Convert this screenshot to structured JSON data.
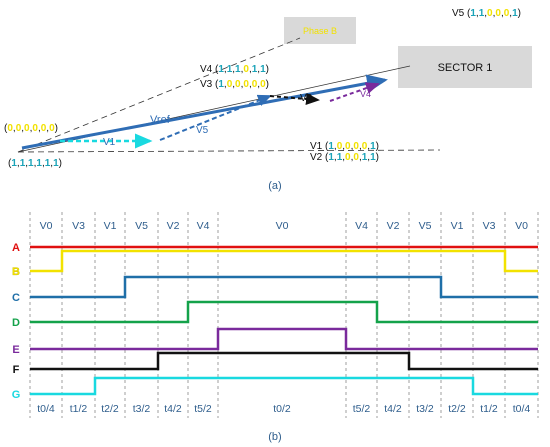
{
  "top": {
    "box_phase": "Phase B",
    "box_sector": "SECTOR 1",
    "caption": "(a)",
    "vref_label": "Vref",
    "v1_label": "V1",
    "v5_small_label": "V5",
    "v2_label": "V2",
    "v4_small_label": "V4",
    "vectors": {
      "v5": {
        "name": "V5",
        "bits": [
          "1",
          "1",
          "0",
          "0",
          "0",
          "1"
        ]
      },
      "v4": {
        "name": "V4",
        "bits": [
          "1",
          "1",
          "1",
          "0",
          "1",
          "1"
        ]
      },
      "v3": {
        "name": "V3",
        "bits": [
          "1",
          "0",
          "0",
          "0",
          "0",
          "0"
        ]
      },
      "v1": {
        "name": "V1",
        "bits": [
          "1",
          "0",
          "0",
          "0",
          "0",
          "1"
        ]
      },
      "v2": {
        "name": "V2",
        "bits": [
          "1",
          "1",
          "0",
          "0",
          "1",
          "1"
        ]
      },
      "origin0": {
        "bits": [
          "0",
          "0",
          "0",
          "0",
          "0",
          "0"
        ]
      },
      "origin1": {
        "bits": [
          "1",
          "1",
          "1",
          "1",
          "1",
          "1"
        ]
      }
    }
  },
  "bottom": {
    "caption": "(b)",
    "top_labels": [
      "V0",
      "V3",
      "V1",
      "V5",
      "V2",
      "V4",
      "V0",
      "V4",
      "V2",
      "V5",
      "V1",
      "V3",
      "V0"
    ],
    "bottom_labels": [
      "t0/4",
      "t1/2",
      "t2/2",
      "t3/2",
      "t4/2",
      "t5/2",
      "t0/2",
      "t5/2",
      "t4/2",
      "t3/2",
      "t2/2",
      "t1/2",
      "t0/4"
    ],
    "signals": [
      {
        "name": "A",
        "color": "#e01010"
      },
      {
        "name": "B",
        "color": "#f2e200"
      },
      {
        "name": "C",
        "color": "#1f6fa8"
      },
      {
        "name": "D",
        "color": "#14a24a"
      },
      {
        "name": "E",
        "color": "#7a2a9c"
      },
      {
        "name": "F",
        "color": "#111111"
      },
      {
        "name": "G",
        "color": "#19d9e0"
      }
    ]
  },
  "colors": {
    "vref": "#2f6db5",
    "bit0": "#f2e200",
    "bit1": "#1aa3b8",
    "box": "#d9d9d9",
    "segment_text": "#2e5d8c"
  }
}
